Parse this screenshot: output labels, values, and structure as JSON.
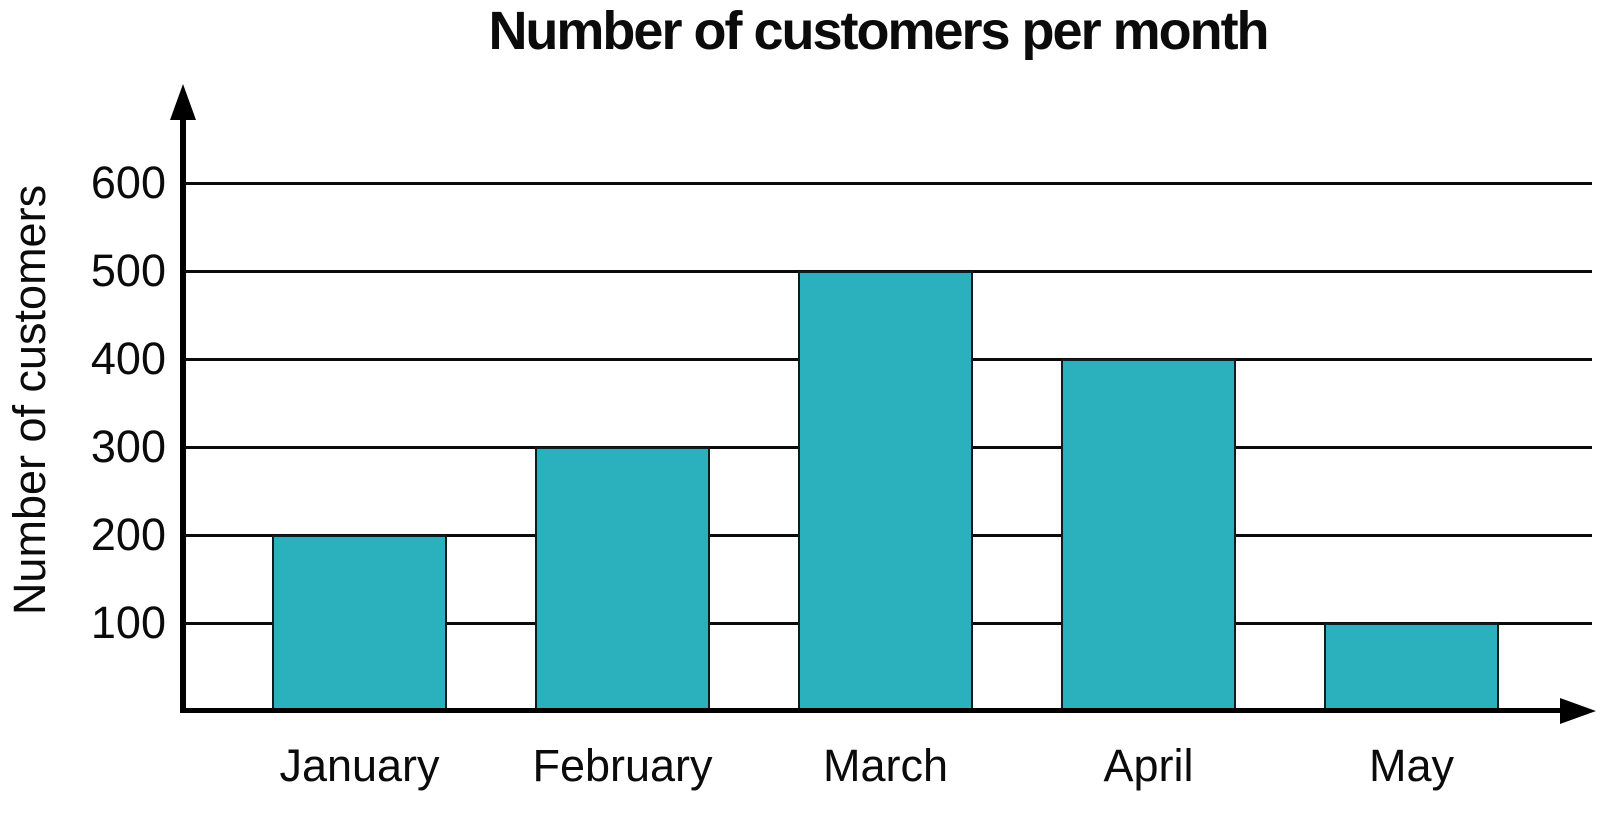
{
  "chart_data": {
    "type": "bar",
    "title": "Number of customers per month",
    "ylabel": "Number of customers",
    "xlabel": "",
    "categories": [
      "January",
      "February",
      "March",
      "April",
      "May"
    ],
    "values": [
      200,
      300,
      500,
      400,
      100
    ],
    "yticks": [
      100,
      200,
      300,
      400,
      500,
      600
    ],
    "ylim": [
      0,
      700
    ],
    "grid": "horizontal",
    "legend_position": "none",
    "bar_color": "#2bb1bd",
    "bar_border_color": "#101b1e",
    "axis_color": "#000000",
    "grid_color": "#0b0b0b",
    "text_color": "#0b0b0b"
  }
}
